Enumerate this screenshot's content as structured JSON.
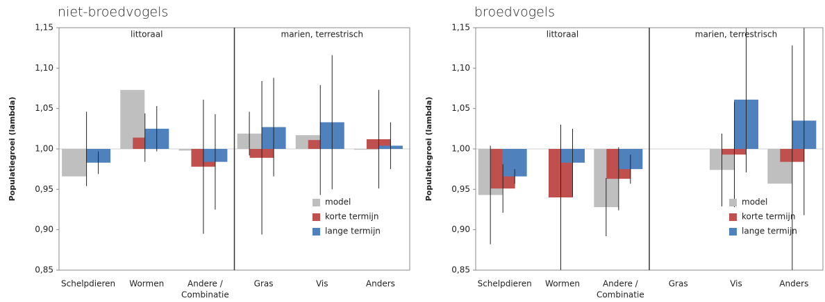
{
  "chart_data": [
    {
      "type": "bar",
      "title": "niet-broedvogels",
      "y_label": "Populatiegroei (lambda)",
      "groups": [
        {
          "label": "littoraal",
          "categories": [
            [
              "Schelpdieren"
            ],
            [
              "Wormen"
            ],
            [
              "Andere /",
              "Combinatie"
            ]
          ]
        },
        {
          "label": "marien, terrestrisch",
          "categories": [
            [
              "Gras"
            ],
            [
              "Vis"
            ],
            [
              "Anders"
            ]
          ]
        }
      ],
      "baseline": 1,
      "ylim": [
        0.85,
        1.15
      ],
      "yticks": [
        {
          "value": 0.85,
          "label": "0,85"
        },
        {
          "value": 0.9,
          "label": "0,90"
        },
        {
          "value": 0.95,
          "label": "0,95"
        },
        {
          "value": 1.0,
          "label": "1,00"
        },
        {
          "value": 1.05,
          "label": "1,05"
        },
        {
          "value": 1.1,
          "label": "1,10"
        },
        {
          "value": 1.15,
          "label": "1,15"
        }
      ],
      "series": [
        {
          "name": "model",
          "color": "#bfbfbf",
          "values": [
            0.966,
            1.073,
            0.998,
            1.019,
            1.017,
            0.999
          ],
          "errors": [
            null,
            null,
            null,
            0.027,
            null,
            null
          ]
        },
        {
          "name": "korte termijn",
          "color": "#c0504d",
          "values": [
            1.0,
            1.014,
            0.978,
            0.989,
            1.011,
            1.012
          ],
          "errors": [
            0.046,
            0.03,
            0.083,
            0.095,
            0.068,
            0.061
          ]
        },
        {
          "name": "lange termijn",
          "color": "#4f81bd",
          "values": [
            0.983,
            1.025,
            0.984,
            1.027,
            1.033,
            1.004
          ],
          "errors": [
            0.014,
            0.028,
            0.059,
            0.061,
            0.083,
            0.029
          ]
        }
      ]
    },
    {
      "type": "bar",
      "title": "broedvogels",
      "y_label": "Populatiegroei (lambda)",
      "groups": [
        {
          "label": "littoraal",
          "categories": [
            [
              "Schelpdieren"
            ],
            [
              "Wormen"
            ],
            [
              "Andere /",
              "Combinatie"
            ]
          ]
        },
        {
          "label": "marien, terrestrisch",
          "categories": [
            [
              "Gras"
            ],
            [
              "Vis"
            ],
            [
              "Anders"
            ]
          ]
        }
      ],
      "baseline": 1,
      "ylim": [
        0.85,
        1.15
      ],
      "yticks": [
        {
          "value": 0.85,
          "label": "0,85"
        },
        {
          "value": 0.9,
          "label": "0,90"
        },
        {
          "value": 0.95,
          "label": "0,95"
        },
        {
          "value": 1.0,
          "label": "1,00"
        },
        {
          "value": 1.05,
          "label": "1,05"
        },
        {
          "value": 1.1,
          "label": "1,10"
        },
        {
          "value": 1.15,
          "label": "1,15"
        }
      ],
      "series": [
        {
          "name": "model",
          "color": "#bfbfbf",
          "values": [
            0.943,
            null,
            0.928,
            null,
            0.974,
            0.957
          ],
          "errors": [
            0.061,
            null,
            0.036,
            null,
            0.045,
            null
          ]
        },
        {
          "name": "korte termijn",
          "color": "#c0504d",
          "values": [
            0.951,
            0.94,
            0.963,
            null,
            0.993,
            0.984
          ],
          "errors": [
            0.03,
            0.09,
            0.039,
            null,
            0.065,
            0.144
          ]
        },
        {
          "name": "lange termijn",
          "color": "#4f81bd",
          "values": [
            0.966,
            0.983,
            0.975,
            null,
            1.061,
            1.035
          ],
          "errors": [
            0.009,
            0.042,
            0.018,
            null,
            0.09,
            0.117
          ]
        }
      ]
    }
  ]
}
